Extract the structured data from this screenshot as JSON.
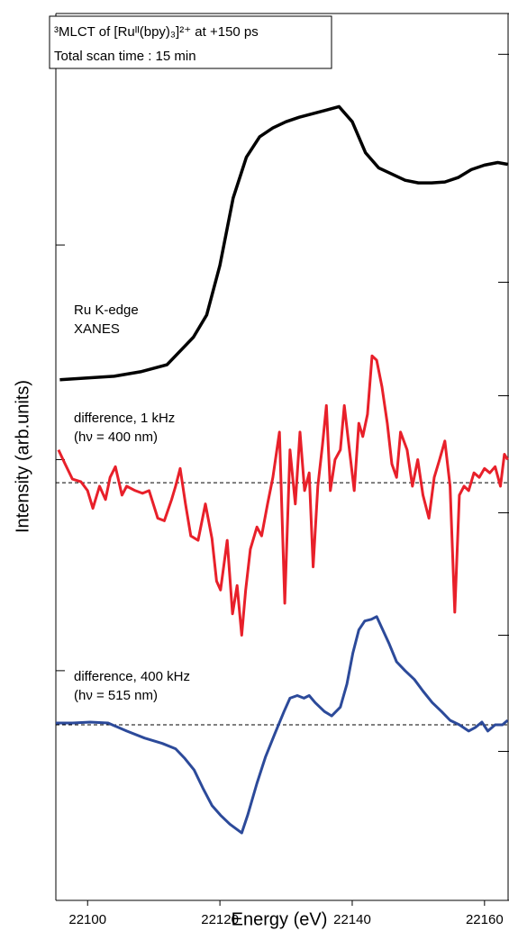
{
  "chart_data": {
    "type": "line",
    "xlabel": "Energy (eV)",
    "ylabel": "Intensity (arb.units)",
    "box_lines": [
      "³MLCT of [Ruᴵᴵ(bpy)₃]²⁺ at +150 ps",
      "Total scan time  : 15 min"
    ],
    "xlim": [
      22095.2,
      22163.7
    ],
    "xticks": [
      22100,
      22120,
      22140,
      22160
    ],
    "ylim": [
      0,
      100
    ],
    "yticks": [
      73.9,
      49.7,
      25.9
    ],
    "y2lim": [
      0,
      100
    ],
    "y2ticks": [
      95.4,
      69.7,
      56.9,
      43.7,
      29.9,
      16.8
    ],
    "series": [
      {
        "labels": [
          "Ru K-edge",
          "XANES"
        ],
        "color": "#000000",
        "x": [
          22095.8,
          22100,
          22104,
          22108,
          22112,
          22116,
          22118,
          22120,
          22122,
          22124,
          22126,
          22128,
          22130,
          22132,
          22134,
          22136,
          22138,
          22140,
          22142,
          22144,
          22146,
          22148,
          22150,
          22152,
          22154,
          22156,
          22158,
          22160,
          22162,
          22163.5
        ],
        "values": [
          58.7,
          58.9,
          59.1,
          59.6,
          60.4,
          63.5,
          66.0,
          71.6,
          79.2,
          83.8,
          86.1,
          87.1,
          87.8,
          88.3,
          88.7,
          89.1,
          89.5,
          87.8,
          84.3,
          82.6,
          81.9,
          81.2,
          80.9,
          80.9,
          81.0,
          81.5,
          82.4,
          82.9,
          83.2,
          83.0
        ]
      },
      {
        "labels": [
          "difference, 1 kHz",
          "(hν = 400 nm)"
        ],
        "color": "#e8202a",
        "baseline": 47.1,
        "x": [
          22095.6,
          22096.6,
          22097.7,
          22099.0,
          22100.0,
          22100.8,
          22101.8,
          22102.7,
          22103.4,
          22104.2,
          22105.2,
          22105.9,
          22107.2,
          22108.3,
          22109.3,
          22110.6,
          22111.6,
          22112.7,
          22113.3,
          22114.0,
          22114.8,
          22115.6,
          22116.7,
          22117.8,
          22118.8,
          22119.5,
          22120.1,
          22121.1,
          22121.9,
          22122.6,
          22123.3,
          22123.9,
          22124.6,
          22125.6,
          22126.3,
          22127.2,
          22128.0,
          22129.0,
          22129.8,
          22130.6,
          22131.4,
          22132.1,
          22132.8,
          22133.5,
          22134.1,
          22134.8,
          22135.5,
          22136.1,
          22136.7,
          22137.4,
          22138.2,
          22138.8,
          22139.5,
          22140.3,
          22141.0,
          22141.6,
          22142.3,
          22143.0,
          22143.7,
          22144.5,
          22145.3,
          22146.0,
          22146.7,
          22147.3,
          22148.3,
          22149.1,
          22149.9,
          22150.7,
          22151.6,
          22152.4,
          22153.2,
          22154.0,
          22154.8,
          22155.5,
          22156.2,
          22156.9,
          22157.6,
          22158.4,
          22159.2,
          22160.0,
          22160.8,
          22161.6,
          22162.4,
          22163.0,
          22163.5
        ],
        "values": [
          50.8,
          49.2,
          47.5,
          47.2,
          46.2,
          44.2,
          46.7,
          45.2,
          47.7,
          48.9,
          45.7,
          46.7,
          46.2,
          45.9,
          46.2,
          43.1,
          42.8,
          45.2,
          46.7,
          48.7,
          44.7,
          41.1,
          40.6,
          44.7,
          40.8,
          36.0,
          35.0,
          40.6,
          32.3,
          35.5,
          29.9,
          35.0,
          39.6,
          42.1,
          41.1,
          44.7,
          47.7,
          52.8,
          33.5,
          50.8,
          44.7,
          52.8,
          46.2,
          48.2,
          37.6,
          46.7,
          51.3,
          55.8,
          46.2,
          49.7,
          50.8,
          55.8,
          51.3,
          46.2,
          53.8,
          52.3,
          54.8,
          61.4,
          60.9,
          57.9,
          53.8,
          49.2,
          47.7,
          52.8,
          50.8,
          46.7,
          49.7,
          45.7,
          43.1,
          47.7,
          49.7,
          51.8,
          46.7,
          32.5,
          45.7,
          46.7,
          46.2,
          48.2,
          47.7,
          48.7,
          48.2,
          48.9,
          46.7,
          50.3,
          49.7
        ]
      },
      {
        "labels": [
          "difference, 400 kHz",
          "(hν = 515 nm)"
        ],
        "color": "#2c4a9a",
        "baseline": 19.8,
        "x": [
          22095.2,
          22097.7,
          22100.4,
          22103.1,
          22105.9,
          22108.6,
          22111.3,
          22113.3,
          22114.7,
          22116.1,
          22117.4,
          22118.8,
          22120.1,
          22121.5,
          22123.3,
          22124.2,
          22125.6,
          22126.9,
          22128.3,
          22129.7,
          22130.6,
          22131.7,
          22132.7,
          22133.5,
          22134.4,
          22135.8,
          22136.9,
          22138.2,
          22139.2,
          22140.1,
          22141.0,
          22141.9,
          22142.9,
          22143.7,
          22144.5,
          22145.6,
          22146.7,
          22148.0,
          22149.4,
          22150.7,
          22152.1,
          22153.5,
          22154.8,
          22156.2,
          22157.6,
          22158.6,
          22159.6,
          22160.5,
          22161.6,
          22162.7,
          22163.5
        ],
        "values": [
          20.0,
          20.0,
          20.1,
          20.0,
          19.1,
          18.3,
          17.7,
          17.1,
          16.0,
          14.7,
          12.7,
          10.7,
          9.6,
          8.6,
          7.6,
          9.6,
          13.2,
          16.2,
          18.8,
          21.3,
          22.8,
          23.1,
          22.8,
          23.1,
          22.3,
          21.3,
          20.8,
          21.8,
          24.4,
          27.9,
          30.5,
          31.5,
          31.7,
          32.0,
          30.7,
          28.9,
          26.9,
          25.9,
          24.9,
          23.6,
          22.3,
          21.3,
          20.3,
          19.8,
          19.1,
          19.5,
          20.1,
          19.1,
          19.8,
          19.8,
          20.3
        ]
      }
    ]
  }
}
